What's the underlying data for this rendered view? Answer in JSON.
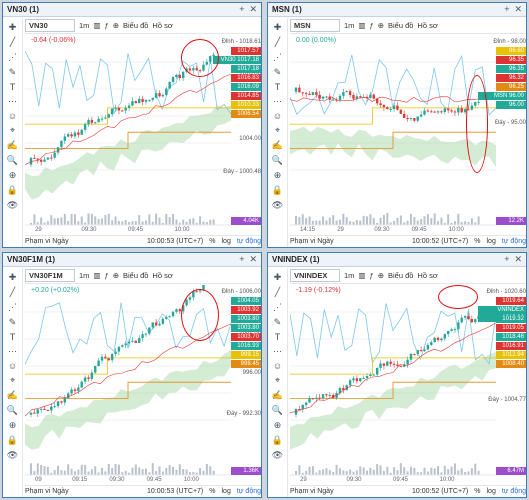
{
  "panels": [
    {
      "id": "p1",
      "title": "VN30 (1)",
      "symbol": "VN30",
      "interval": "1m",
      "chart_btn": "Biểu đồ",
      "ho_so": "Hồ sơ",
      "change": "-0.64 (-0.06%)",
      "change_color": "#d33",
      "axis": [
        "Đỉnh - 1018.61",
        "1010.00",
        "1006.00",
        "1004.00",
        "Đáy - 1000.48"
      ],
      "tags": [
        {
          "v": "1017.57",
          "c": "#d33"
        },
        {
          "v": "VN30 1017.18",
          "c": "#2a9"
        },
        {
          "v": "1017.18",
          "c": "#2a9"
        },
        {
          "v": "1016.83",
          "c": "#d33"
        },
        {
          "v": "1016.09",
          "c": "#2a9"
        },
        {
          "v": "1014.85",
          "c": "#d33"
        },
        {
          "v": "1010.33",
          "c": "#e8c100"
        },
        {
          "v": "1006.54",
          "c": "#e38a12"
        }
      ],
      "vol_tag": "4.04K",
      "times": [
        "29",
        "09:30",
        "09:45",
        "10:00"
      ],
      "range": "Phạm vi Ngày",
      "clock": "10:00:53 (UTC+7)",
      "pct": "%",
      "log": "log",
      "auto": "tự động"
    },
    {
      "id": "p2",
      "title": "MSN (1)",
      "symbol": "MSN",
      "interval": "1m",
      "chart_btn": "Biểu đồ",
      "ho_so": "Hồ sơ",
      "change": "0.00 (0.00%)",
      "change_color": "#2a9",
      "axis": [
        "Đỉnh - 98.00",
        "Đáy - 95.00"
      ],
      "tags": [
        {
          "v": "96.60",
          "c": "#e8c100"
        },
        {
          "v": "96.35",
          "c": "#d33"
        },
        {
          "v": "96.35",
          "c": "#2a9"
        },
        {
          "v": "96.32",
          "c": "#d33"
        },
        {
          "v": "96.25",
          "c": "#e38a12"
        },
        {
          "v": "MSN 96.00",
          "c": "#2a9"
        },
        {
          "v": "96.00",
          "c": "#2a9"
        }
      ],
      "vol_tag": "12.2K",
      "times": [
        "14:15",
        "29",
        "09:30",
        "09:45",
        "10:00"
      ],
      "range": "Phạm vi Ngày",
      "clock": "10:00:52 (UTC+7)",
      "pct": "%",
      "log": "log",
      "auto": "tự động"
    },
    {
      "id": "p3",
      "title": "VN30F1M (1)",
      "symbol": "VN30F1M",
      "interval": "1m",
      "chart_btn": "Biểu đồ",
      "ho_so": "Hồ sơ",
      "change": "+0.20 (+0.02%)",
      "change_color": "#2a9",
      "axis": [
        "Đỉnh - 1006.00",
        "1002.00",
        "996.00",
        "Đáy - 992.30"
      ],
      "tags": [
        {
          "v": "1004.05",
          "c": "#2a9"
        },
        {
          "v": "1003.92",
          "c": "#d33"
        },
        {
          "v": "1003.80",
          "c": "#2a9"
        },
        {
          "v": "1003.80",
          "c": "#2a9"
        },
        {
          "v": "1003.70",
          "c": "#d33"
        },
        {
          "v": "1016.93",
          "c": "#2a9"
        },
        {
          "v": "999.15",
          "c": "#e8c100"
        },
        {
          "v": "998.45",
          "c": "#e38a12"
        }
      ],
      "vol_tag": "1.36K",
      "times": [
        "09",
        "09:15",
        "09:30",
        "09:45",
        "10:00"
      ],
      "range": "Phạm vi Ngày",
      "clock": "10:00:53 (UTC+7)",
      "pct": "%",
      "log": "log",
      "auto": "tự động"
    },
    {
      "id": "p4",
      "title": "VNINDEX (1)",
      "symbol": "VNINDEX",
      "interval": "1m",
      "chart_btn": "Biểu đồ",
      "ho_so": "Hồ sơ",
      "change": "-1.19 (-0.12%)",
      "change_color": "#d33",
      "axis": [
        "Đỉnh - 1020.60",
        "1014.00",
        "Đáy - 1004.77"
      ],
      "tags": [
        {
          "v": "1019.64",
          "c": "#d33"
        },
        {
          "v": "VNINDEX 1019.32",
          "c": "#2a9"
        },
        {
          "v": "1019.32",
          "c": "#2a9"
        },
        {
          "v": "1019.05",
          "c": "#d33"
        },
        {
          "v": "1018.46",
          "c": "#2a9"
        },
        {
          "v": "1016.91",
          "c": "#d33"
        },
        {
          "v": "1012.94",
          "c": "#e8c100"
        },
        {
          "v": "1008.40",
          "c": "#e38a12"
        }
      ],
      "vol_tag": "6.47M",
      "times": [
        "29",
        "09:30",
        "09:45",
        "10:00"
      ],
      "range": "Phạm vi Ngày",
      "clock": "10:00:52 (UTC+7)",
      "pct": "%",
      "log": "log",
      "auto": "tự động"
    }
  ]
}
